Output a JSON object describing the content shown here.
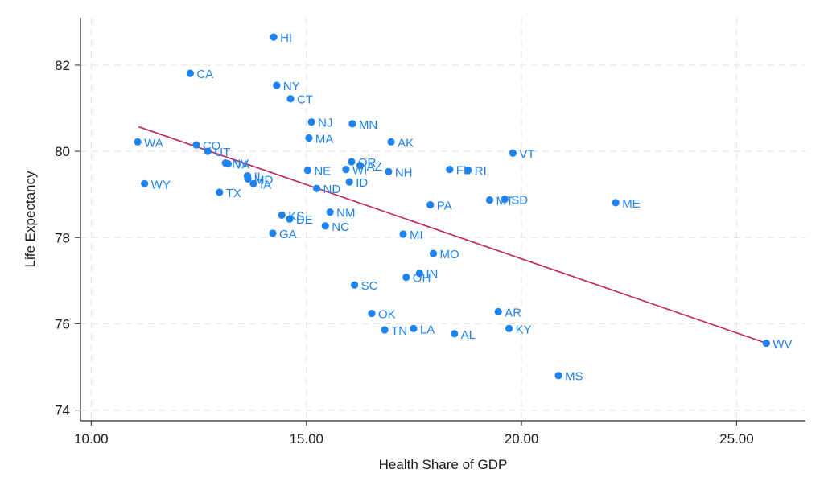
{
  "chart_data": {
    "type": "scatter",
    "title": "",
    "xlabel": "Health Share of GDP",
    "ylabel": "Life Expectancy",
    "xlim": [
      9.75,
      26.6
    ],
    "ylim": [
      73.75,
      83.1
    ],
    "xticks": [
      10,
      15,
      20,
      25
    ],
    "xtick_labels": [
      "10.00",
      "15.00",
      "20.00",
      "25.00"
    ],
    "yticks": [
      74,
      76,
      78,
      80,
      82
    ],
    "ytick_labels": [
      "74",
      "76",
      "78",
      "80",
      "82"
    ],
    "grid": true,
    "legend": "none",
    "marker_color": "#1e82f0",
    "label_color": "#1e82f0",
    "fit_line_color": "#c4245a",
    "fit_line": {
      "x": [
        11.1,
        25.69
      ],
      "y": [
        80.57,
        75.55
      ]
    },
    "points": [
      {
        "label": "HI",
        "x": 14.24,
        "y": 82.65
      },
      {
        "label": "CA",
        "x": 12.3,
        "y": 81.81
      },
      {
        "label": "NY",
        "x": 14.31,
        "y": 81.53
      },
      {
        "label": "CT",
        "x": 14.63,
        "y": 81.22
      },
      {
        "label": "NJ",
        "x": 15.12,
        "y": 80.68
      },
      {
        "label": "MN",
        "x": 16.07,
        "y": 80.64
      },
      {
        "label": "MA",
        "x": 15.06,
        "y": 80.31
      },
      {
        "label": "AK",
        "x": 16.97,
        "y": 80.22
      },
      {
        "label": "WA",
        "x": 11.08,
        "y": 80.22
      },
      {
        "label": "CO",
        "x": 12.44,
        "y": 80.15
      },
      {
        "label": "UT",
        "x": 12.71,
        "y": 80.0
      },
      {
        "label": "VT",
        "x": 19.8,
        "y": 79.96
      },
      {
        "label": "NV",
        "x": 13.12,
        "y": 79.73
      },
      {
        "label": "VA",
        "x": 13.18,
        "y": 79.71
      },
      {
        "label": "OR",
        "x": 16.05,
        "y": 79.76
      },
      {
        "label": "AZ",
        "x": 16.25,
        "y": 79.67
      },
      {
        "label": "WI",
        "x": 15.92,
        "y": 79.58
      },
      {
        "label": "NE",
        "x": 15.03,
        "y": 79.56
      },
      {
        "label": "NH",
        "x": 16.91,
        "y": 79.53
      },
      {
        "label": "FL",
        "x": 18.33,
        "y": 79.58
      },
      {
        "label": "RI",
        "x": 18.76,
        "y": 79.56
      },
      {
        "label": "IL",
        "x": 13.63,
        "y": 79.43
      },
      {
        "label": "MD",
        "x": 13.64,
        "y": 79.36
      },
      {
        "label": "IA",
        "x": 13.77,
        "y": 79.25
      },
      {
        "label": "ID",
        "x": 16.0,
        "y": 79.29
      },
      {
        "label": "WY",
        "x": 11.24,
        "y": 79.25
      },
      {
        "label": "ND",
        "x": 15.24,
        "y": 79.14
      },
      {
        "label": "TX",
        "x": 12.98,
        "y": 79.05
      },
      {
        "label": "MT",
        "x": 19.26,
        "y": 78.87
      },
      {
        "label": "SD",
        "x": 19.61,
        "y": 78.89
      },
      {
        "label": "ME",
        "x": 22.19,
        "y": 78.81
      },
      {
        "label": "PA",
        "x": 17.88,
        "y": 78.76
      },
      {
        "label": "NM",
        "x": 15.55,
        "y": 78.59
      },
      {
        "label": "KS",
        "x": 14.43,
        "y": 78.52
      },
      {
        "label": "DE",
        "x": 14.61,
        "y": 78.43
      },
      {
        "label": "NC",
        "x": 15.44,
        "y": 78.27
      },
      {
        "label": "GA",
        "x": 14.22,
        "y": 78.1
      },
      {
        "label": "MI",
        "x": 17.25,
        "y": 78.08
      },
      {
        "label": "MO",
        "x": 17.95,
        "y": 77.63
      },
      {
        "label": "IN",
        "x": 17.63,
        "y": 77.17
      },
      {
        "label": "OH",
        "x": 17.32,
        "y": 77.08
      },
      {
        "label": "SC",
        "x": 16.12,
        "y": 76.9
      },
      {
        "label": "OK",
        "x": 16.52,
        "y": 76.24
      },
      {
        "label": "AR",
        "x": 19.46,
        "y": 76.28
      },
      {
        "label": "TN",
        "x": 16.82,
        "y": 75.86
      },
      {
        "label": "LA",
        "x": 17.49,
        "y": 75.89
      },
      {
        "label": "AL",
        "x": 18.44,
        "y": 75.77
      },
      {
        "label": "KY",
        "x": 19.71,
        "y": 75.89
      },
      {
        "label": "MS",
        "x": 20.86,
        "y": 74.8
      },
      {
        "label": "WV",
        "x": 25.69,
        "y": 75.55
      }
    ]
  }
}
